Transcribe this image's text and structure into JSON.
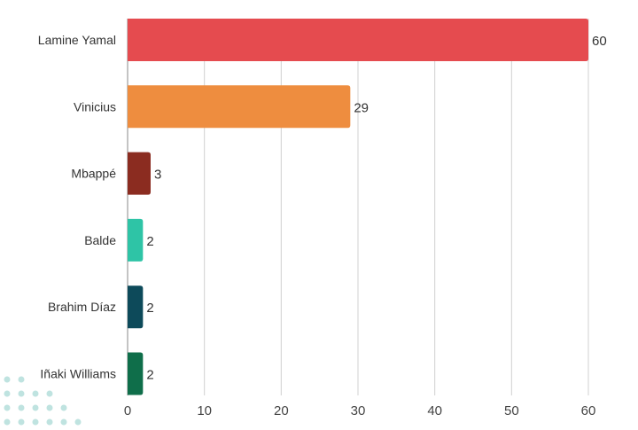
{
  "chart_data": {
    "type": "bar",
    "orientation": "horizontal",
    "title": "",
    "xlabel": "",
    "ylabel": "",
    "categories": [
      "Lamine Yamal",
      "Vinicius",
      "Mbappé",
      "Balde",
      "Brahim Díaz",
      "Iñaki Williams"
    ],
    "values": [
      60,
      29,
      3,
      2,
      2,
      2
    ],
    "colors": [
      "#e54b4f",
      "#ee8d3f",
      "#8b2c20",
      "#2ec4a6",
      "#0d4a5a",
      "#0f6e4a"
    ],
    "xlim": [
      0,
      60
    ],
    "xticks": [
      0,
      10,
      20,
      30,
      40,
      50,
      60
    ],
    "grid": true,
    "data_labels": true
  }
}
